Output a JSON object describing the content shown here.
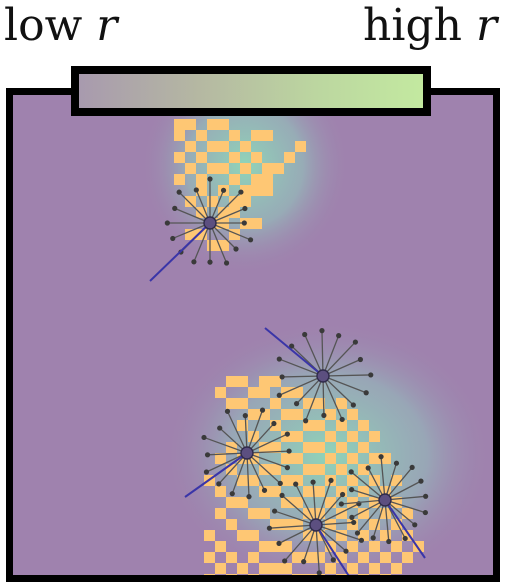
{
  "colorbar": {
    "low_label": "low",
    "high_label": "high",
    "variable": "r",
    "low_color": "#a89aae",
    "high_color": "#c3e9a0"
  },
  "field": {
    "background_color": "#9f82ae",
    "glow_color": "#8fd8b8",
    "cell_color": "#fec774",
    "node_color": "#3a3a3a",
    "spoke_color": "#555555",
    "heading_color": "#3a35a8"
  },
  "clusters": [
    {
      "name": "cluster-top"
    },
    {
      "name": "cluster-bottom"
    }
  ],
  "agents": [
    {
      "name": "agent-top",
      "spokes": 16
    },
    {
      "name": "agent-upper-right",
      "spokes": 16
    },
    {
      "name": "agent-left",
      "spokes": 16
    },
    {
      "name": "agent-bottom-middle",
      "spokes": 16
    },
    {
      "name": "agent-bottom-right",
      "spokes": 16
    }
  ]
}
